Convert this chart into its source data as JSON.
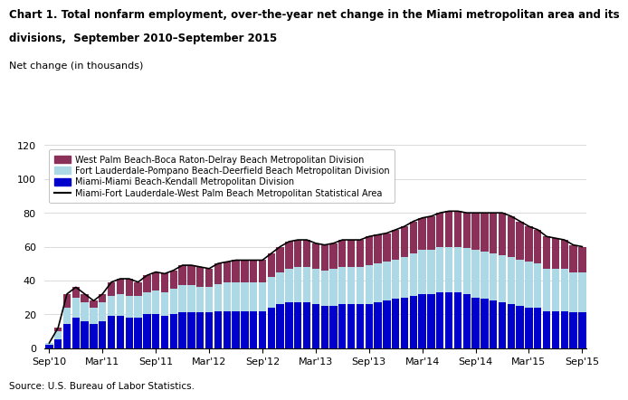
{
  "title_line1": "Chart 1. Total nonfarm employment, over-the-year net change in the Miami metropolitan area and its",
  "title_line2": "divisions,  September 2010–September 2015",
  "ylabel": "Net change (in thousands)",
  "source": "Source: U.S. Bureau of Labor Statistics.",
  "ylim": [
    0.0,
    120.0
  ],
  "yticks": [
    0.0,
    20.0,
    40.0,
    60.0,
    80.0,
    100.0,
    120.0
  ],
  "xtick_labels": [
    "Sep'10",
    "Mar'11",
    "Sep'11",
    "Mar'12",
    "Sep'12",
    "Mar'13",
    "Sep'13",
    "Mar'14",
    "Sep'14",
    "Mar'15",
    "Sep'15"
  ],
  "colors": {
    "miami": "#0000CD",
    "fort_laud": "#ADD8E6",
    "west_palm": "#8B3058",
    "line": "#000000"
  },
  "legend_labels": [
    "West Palm Beach-Boca Raton-Delray Beach Metropolitan Division",
    "Fort Lauderdale-Pompano Beach-Deerfield Beach Metropolitan Division",
    "Miami-Miami Beach-Kendall Metropolitan Division",
    "Miami-Fort Lauderdale-West Palm Beach Metropolitan Statistical Area"
  ],
  "miami_division": [
    2,
    5,
    14,
    18,
    16,
    14,
    16,
    19,
    19,
    18,
    18,
    20,
    20,
    19,
    20,
    21,
    21,
    21,
    21,
    22,
    22,
    22,
    22,
    22,
    22,
    24,
    26,
    27,
    27,
    27,
    26,
    25,
    25,
    26,
    26,
    26,
    26,
    27,
    28,
    29,
    30,
    31,
    32,
    32,
    33,
    33,
    33,
    32,
    30,
    29,
    28,
    27,
    26,
    25,
    24,
    24,
    22,
    22,
    22,
    21,
    21
  ],
  "fort_laud_division": [
    1,
    5,
    10,
    12,
    11,
    10,
    11,
    12,
    13,
    13,
    13,
    13,
    14,
    14,
    15,
    16,
    16,
    15,
    15,
    16,
    17,
    17,
    17,
    17,
    17,
    18,
    19,
    20,
    21,
    21,
    21,
    21,
    22,
    22,
    22,
    22,
    23,
    23,
    23,
    23,
    24,
    25,
    26,
    26,
    27,
    27,
    27,
    27,
    28,
    28,
    28,
    28,
    28,
    27,
    27,
    26,
    25,
    25,
    25,
    24,
    24
  ],
  "west_palm_division": [
    0,
    2,
    8,
    6,
    5,
    4,
    5,
    8,
    9,
    10,
    8,
    10,
    11,
    11,
    11,
    12,
    12,
    12,
    11,
    12,
    12,
    13,
    13,
    13,
    13,
    14,
    15,
    16,
    16,
    16,
    15,
    15,
    15,
    16,
    16,
    16,
    17,
    17,
    17,
    18,
    18,
    19,
    19,
    20,
    20,
    21,
    21,
    21,
    22,
    23,
    24,
    25,
    24,
    23,
    21,
    20,
    19,
    18,
    17,
    16,
    15
  ],
  "total_line": [
    3,
    12,
    32,
    36,
    32,
    28,
    32,
    39,
    41,
    41,
    39,
    43,
    45,
    44,
    46,
    49,
    49,
    48,
    47,
    50,
    51,
    52,
    52,
    52,
    52,
    56,
    60,
    63,
    64,
    64,
    62,
    61,
    62,
    64,
    64,
    64,
    66,
    67,
    68,
    70,
    72,
    75,
    77,
    78,
    80,
    81,
    81,
    80,
    80,
    80,
    80,
    80,
    78,
    75,
    72,
    70,
    66,
    65,
    64,
    61,
    60
  ]
}
